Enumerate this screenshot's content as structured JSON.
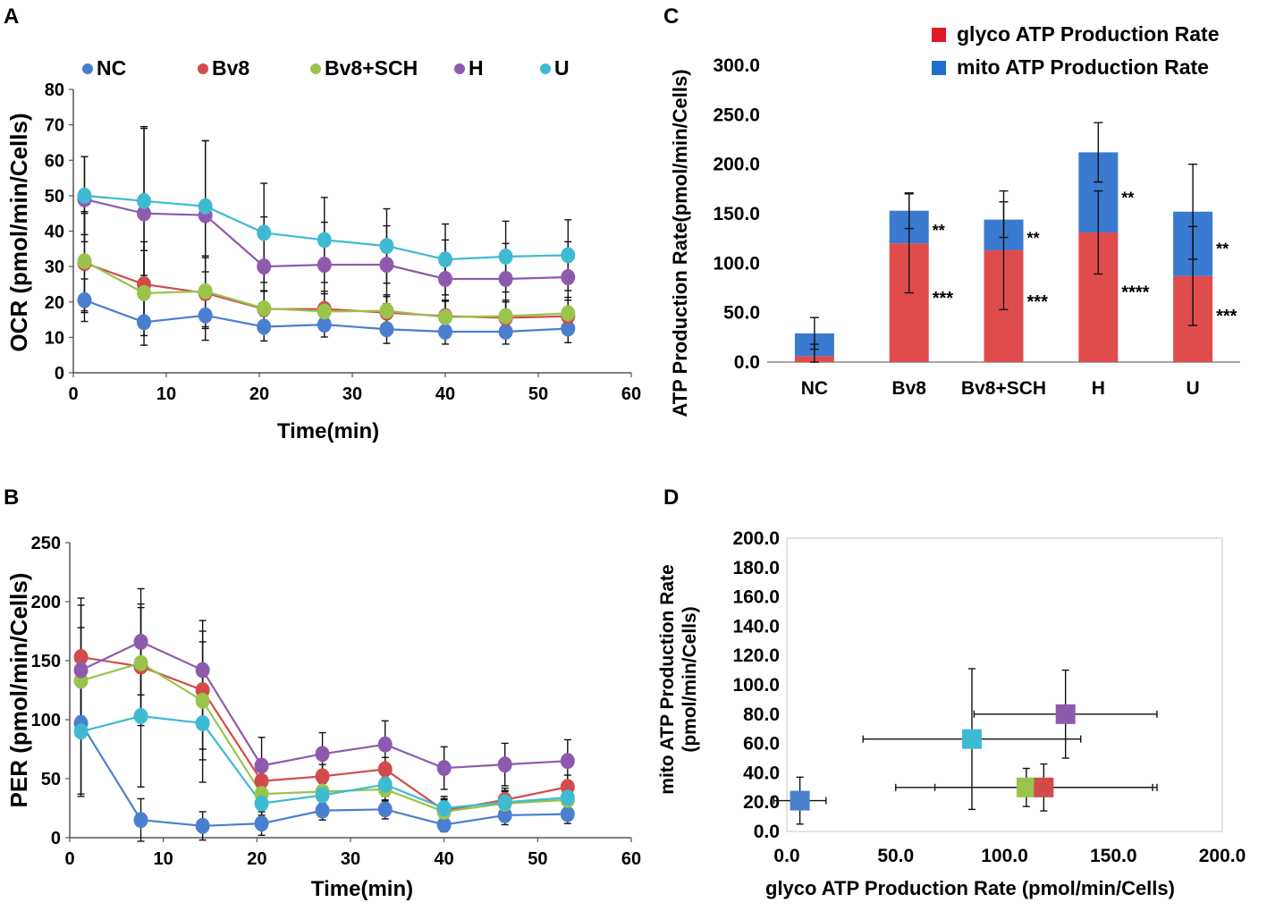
{
  "colors": {
    "NC": "#4a7fd0",
    "Bv8": "#d24b4b",
    "Bv8+SCH": "#99c44c",
    "H": "#8e5aae",
    "U": "#3fbad3",
    "glyco": "#e04c4c",
    "mito": "#3a7ad0",
    "glyco_legend": "#e01a24",
    "mito_legend": "#1f6fcf"
  },
  "chart_data": [
    {
      "id": "A",
      "panel_label": "A",
      "type": "line",
      "title": "",
      "xlabel": "Time(min)",
      "ylabel": "OCR (pmol/min/Cells)",
      "xlim": [
        0,
        60
      ],
      "ylim": [
        0,
        80
      ],
      "xticks": [
        "0",
        "10",
        "20",
        "30",
        "40",
        "50",
        "60"
      ],
      "yticks": [
        "0",
        "10",
        "20",
        "30",
        "40",
        "50",
        "60",
        "70",
        "80"
      ],
      "legend_position": "top",
      "x": [
        1.2,
        7.6,
        14.2,
        20.5,
        27,
        33.7,
        40,
        46.5,
        53.2
      ],
      "series": [
        {
          "name": "NC",
          "values": [
            20.5,
            14.3,
            16.2,
            13.0,
            13.6,
            12.3,
            11.6,
            11.6,
            12.5
          ],
          "errors": [
            6,
            6.5,
            7,
            4,
            3.5,
            4,
            3.5,
            3.5,
            4
          ]
        },
        {
          "name": "Bv8",
          "values": [
            31.0,
            25.0,
            22.5,
            18.0,
            18.0,
            17.0,
            16.0,
            15.5,
            16.0
          ],
          "errors": [
            14,
            12,
            10,
            5,
            5,
            4.5,
            4.5,
            4.5,
            4.5
          ]
        },
        {
          "name": "Bv8+SCH",
          "values": [
            31.5,
            22.5,
            23.0,
            18.2,
            17.3,
            17.5,
            15.7,
            16.0,
            16.8
          ],
          "errors": [
            14,
            12,
            10,
            5,
            5,
            4.5,
            4.5,
            4.5,
            4.5
          ]
        },
        {
          "name": "H",
          "values": [
            49.0,
            45.0,
            44.5,
            30.0,
            30.5,
            30.5,
            26.5,
            26.5,
            27.0
          ],
          "errors": [
            12,
            24,
            21,
            14,
            12,
            11,
            11,
            10,
            10
          ]
        },
        {
          "name": "U",
          "values": [
            50.0,
            48.5,
            47.0,
            39.5,
            37.5,
            35.8,
            32.0,
            32.8,
            33.2
          ],
          "errors": [
            11,
            21,
            18.5,
            14,
            12,
            10.5,
            10,
            10,
            10
          ]
        }
      ]
    },
    {
      "id": "B",
      "panel_label": "B",
      "type": "line",
      "title": "",
      "xlabel": "Time(min)",
      "ylabel": "PER (pmol/min/Cells)",
      "xlim": [
        0,
        60
      ],
      "ylim": [
        0,
        250
      ],
      "xticks": [
        "0",
        "10",
        "20",
        "30",
        "40",
        "50",
        "60"
      ],
      "yticks": [
        "0",
        "50",
        "100",
        "150",
        "200",
        "250"
      ],
      "x": [
        1.2,
        7.6,
        14.2,
        20.5,
        27,
        33.7,
        40,
        46.5,
        53.2
      ],
      "series": [
        {
          "name": "NC",
          "values": [
            97,
            15,
            10,
            12,
            23,
            24,
            11,
            19,
            20
          ],
          "errors": [
            60,
            18,
            12,
            10,
            8,
            8,
            6,
            8,
            8
          ]
        },
        {
          "name": "Bv8",
          "values": [
            153,
            145,
            125,
            48,
            52,
            58,
            23,
            32,
            43
          ],
          "errors": [
            50,
            50,
            50,
            12,
            10,
            10,
            10,
            10,
            10
          ]
        },
        {
          "name": "Bv8+SCH",
          "values": [
            133,
            148,
            116,
            37,
            39,
            41,
            22,
            29,
            32
          ],
          "errors": [
            45,
            50,
            50,
            10,
            10,
            10,
            10,
            10,
            10
          ]
        },
        {
          "name": "H",
          "values": [
            142,
            166,
            142,
            61,
            71,
            79,
            59,
            62,
            65
          ],
          "errors": [
            55,
            45,
            42,
            24,
            18,
            20,
            18,
            18,
            18
          ]
        },
        {
          "name": "U",
          "values": [
            90,
            103,
            97,
            29,
            36,
            45,
            25,
            30,
            34
          ],
          "errors": [
            55,
            60,
            50,
            10,
            10,
            10,
            10,
            10,
            10
          ]
        }
      ]
    },
    {
      "id": "C",
      "panel_label": "C",
      "type": "bar",
      "stacked": true,
      "title": "",
      "xlabel": "",
      "ylabel": "ATP Production Rate(pmol/min/Cells)",
      "ylim": [
        0,
        300
      ],
      "yticks": [
        "0.0",
        "50.0",
        "100.0",
        "150.0",
        "200.0",
        "250.0",
        "300.0"
      ],
      "categories": [
        "NC",
        "Bv8",
        "Bv8+SCH",
        "H",
        "U"
      ],
      "series": [
        {
          "name": "glyco ATP Production Rate",
          "key": "glyco",
          "values": [
            6,
            120,
            113,
            131,
            87
          ],
          "errors": [
            12,
            50,
            60,
            42,
            50
          ],
          "annotations": [
            "",
            "***",
            "***",
            "****",
            "***"
          ]
        },
        {
          "name": "mito ATP Production Rate",
          "key": "mito",
          "values": [
            23,
            33,
            31,
            81,
            65
          ],
          "errors": [
            16,
            18,
            18,
            30,
            48
          ],
          "annotations": [
            "",
            "**",
            "**",
            "**",
            "**"
          ]
        }
      ],
      "legend_position": "top-right"
    },
    {
      "id": "D",
      "panel_label": "D",
      "type": "scatter",
      "title": "",
      "xlabel": "glyco ATP Production Rate (pmol/min/Cells)",
      "ylabel_lines": [
        "mito ATP Production Rate",
        "(pmol/min/Cells)"
      ],
      "xlim": [
        0,
        200
      ],
      "ylim": [
        0,
        200
      ],
      "xticks": [
        "0.0",
        "50.0",
        "100.0",
        "150.0",
        "200.0"
      ],
      "yticks": [
        "0.0",
        "20.0",
        "40.0",
        "60.0",
        "80.0",
        "100.0",
        "120.0",
        "140.0",
        "160.0",
        "180.0",
        "200.0"
      ],
      "points": [
        {
          "name": "NC",
          "x": 6,
          "y": 21,
          "xerr": 12,
          "yerr": 16
        },
        {
          "name": "Bv8+SCH",
          "x": 110,
          "y": 30,
          "xerr": 60,
          "yerr": 13
        },
        {
          "name": "Bv8",
          "x": 118,
          "y": 30,
          "xerr": 50,
          "yerr": 16
        },
        {
          "name": "U",
          "x": 85,
          "y": 63,
          "xerr": 50,
          "yerr": 48
        },
        {
          "name": "H",
          "x": 128,
          "y": 80,
          "xerr": 42,
          "yerr": 30
        }
      ]
    }
  ]
}
